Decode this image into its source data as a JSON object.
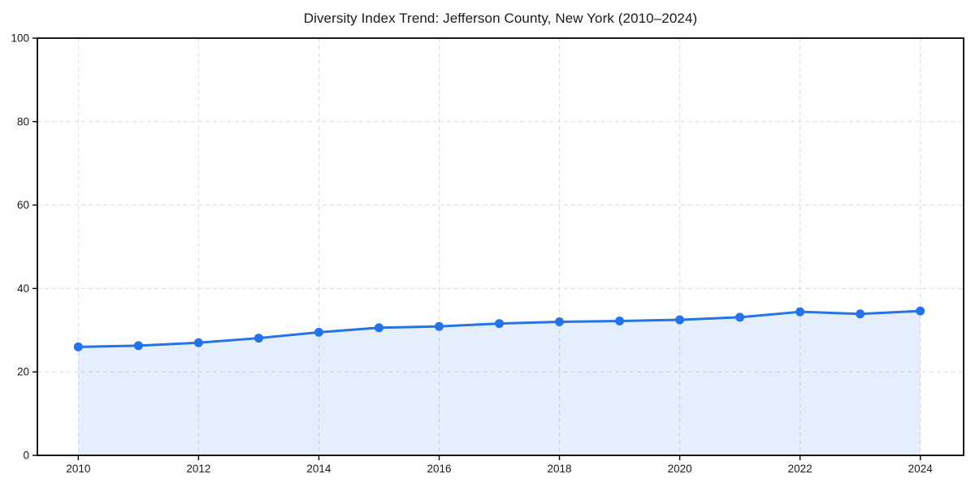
{
  "chart_data": {
    "type": "area",
    "title": "Diversity Index Trend: Jefferson County, New York (2010–2024)",
    "x": [
      2010,
      2011,
      2012,
      2013,
      2014,
      2015,
      2016,
      2017,
      2018,
      2019,
      2020,
      2021,
      2022,
      2023,
      2024
    ],
    "series": [
      {
        "name": "Diversity Index",
        "values": [
          26.0,
          26.3,
          27.0,
          28.1,
          29.5,
          30.6,
          30.9,
          31.6,
          32.0,
          32.2,
          32.5,
          33.1,
          34.4,
          33.9,
          34.6
        ]
      }
    ],
    "xlabel": "",
    "ylabel": "",
    "xlim": [
      2009.32,
      2024.72
    ],
    "ylim": [
      0,
      100
    ],
    "xticks": [
      2010,
      2012,
      2014,
      2016,
      2018,
      2020,
      2022,
      2024
    ],
    "yticks": [
      0,
      20,
      40,
      60,
      80,
      100
    ],
    "grid": true,
    "grid_style": "dashed",
    "legend": "none",
    "line_color": "#2573e8",
    "fill_color": "#2573e8",
    "fill_opacity": 0.12,
    "grid_color": "#dcdcdc",
    "spine_color": "#000000",
    "text_color": "#1a1a1a",
    "marker": "circle"
  }
}
